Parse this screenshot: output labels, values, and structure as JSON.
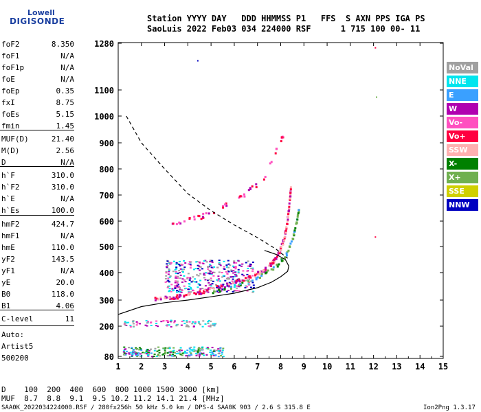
{
  "logo": {
    "line1": "Lowell",
    "line2": "DIGISONDE"
  },
  "header": {
    "row1": "Station YYYY DAY   DDD HHMMSS P1   FFS  S AXN PPS IGA PS",
    "row2": "SaoLuis 2022 Feb03 034 224000 RSF      1 715 100 00- 11"
  },
  "params": [
    {
      "label": "foF2",
      "value": "8.350"
    },
    {
      "label": "foF1",
      "value": "N/A"
    },
    {
      "label": "foF1p",
      "value": "N/A"
    },
    {
      "label": "foE",
      "value": "N/A"
    },
    {
      "label": "foEp",
      "value": "0.35"
    },
    {
      "label": "fxI",
      "value": "8.75"
    },
    {
      "label": "foEs",
      "value": "5.15"
    },
    {
      "label": "fmin",
      "value": "1.45"
    },
    {
      "label": "MUF(D)",
      "value": "21.40"
    },
    {
      "label": "M(D)",
      "value": "2.56"
    },
    {
      "label": "D",
      "value": "N/A"
    },
    {
      "label": "h`F",
      "value": "310.0"
    },
    {
      "label": "h`F2",
      "value": "310.0"
    },
    {
      "label": "h`E",
      "value": "N/A"
    },
    {
      "label": "h`Es",
      "value": "100.0"
    },
    {
      "label": "hmF2",
      "value": "424.7"
    },
    {
      "label": "hmF1",
      "value": "N/A"
    },
    {
      "label": "hmE",
      "value": "110.0"
    },
    {
      "label": "yF2",
      "value": "143.5"
    },
    {
      "label": "yF1",
      "value": "N/A"
    },
    {
      "label": "yE",
      "value": "20.0"
    },
    {
      "label": "B0",
      "value": "118.0"
    },
    {
      "label": "B1",
      "value": "4.06"
    },
    {
      "label": "C-level",
      "value": "11"
    }
  ],
  "auto": {
    "line1": "Auto:",
    "line2": "Artist5",
    "line3": "500200"
  },
  "legend": [
    {
      "label": "NoVal",
      "color": "#a0a0a0"
    },
    {
      "label": "NNE",
      "color": "#00e5ee"
    },
    {
      "label": "E",
      "color": "#3aa0ff"
    },
    {
      "label": "W",
      "color": "#b000b0"
    },
    {
      "label": "Vo-",
      "color": "#ff50c0"
    },
    {
      "label": "Vo+",
      "color": "#ff0040"
    },
    {
      "label": "SSW",
      "color": "#ffb0b0"
    },
    {
      "label": "X-",
      "color": "#008000"
    },
    {
      "label": "X+",
      "color": "#70b050"
    },
    {
      "label": "SSE",
      "color": "#d0d000"
    },
    {
      "label": "NNW",
      "color": "#0000c0"
    }
  ],
  "muf_table": {
    "row1": "D    100  200  400  600  800 1000 1500 3000 [km]",
    "row2": "MUF  8.7  8.8  9.1  9.5 10.2 11.2 14.1 21.4 [MHz]"
  },
  "footer": {
    "left": "SAA0K_2022034224000.RSF / 280fx256h 50 kHz 5.0 km / DPS-4 SAA0K 903 / 2.6 S 315.8 E",
    "right": "Ion2Png 1.3.17"
  },
  "chart_data": {
    "type": "scatter",
    "xlabel": "",
    "ylabel": "",
    "xlim": [
      1,
      15
    ],
    "ylim": [
      80,
      1280
    ],
    "xticks": [
      1,
      2,
      3,
      4,
      5,
      6,
      7,
      8,
      9,
      10,
      11,
      12,
      13,
      14,
      15
    ],
    "yticks": [
      80,
      200,
      300,
      400,
      500,
      600,
      700,
      800,
      900,
      1000,
      1100,
      1280
    ],
    "o_trace": [
      [
        2.5,
        305
      ],
      [
        3.5,
        315
      ],
      [
        4.5,
        330
      ],
      [
        5.5,
        355
      ],
      [
        6.5,
        380
      ],
      [
        7.2,
        410
      ],
      [
        7.6,
        440
      ],
      [
        7.9,
        480
      ],
      [
        8.1,
        530
      ],
      [
        8.25,
        600
      ],
      [
        8.35,
        680
      ],
      [
        8.4,
        730
      ]
    ],
    "x_trace": [
      [
        5.0,
        330
      ],
      [
        6.0,
        355
      ],
      [
        7.0,
        385
      ],
      [
        7.8,
        430
      ],
      [
        8.2,
        470
      ],
      [
        8.5,
        540
      ],
      [
        8.65,
        600
      ],
      [
        8.75,
        650
      ]
    ],
    "profile_curve": [
      [
        1.0,
        245
      ],
      [
        2.0,
        275
      ],
      [
        3.0,
        290
      ],
      [
        4.0,
        300
      ],
      [
        5.0,
        312
      ],
      [
        6.0,
        325
      ],
      [
        7.0,
        345
      ],
      [
        7.6,
        365
      ],
      [
        8.0,
        385
      ],
      [
        8.3,
        405
      ],
      [
        8.35,
        425
      ],
      [
        8.2,
        450
      ],
      [
        7.8,
        470
      ],
      [
        7.3,
        485
      ]
    ],
    "muf_dashed": [
      [
        1.35,
        1000
      ],
      [
        2.0,
        900
      ],
      [
        3.0,
        800
      ],
      [
        4.0,
        705
      ],
      [
        5.0,
        640
      ],
      [
        6.0,
        585
      ],
      [
        7.0,
        535
      ],
      [
        7.8,
        490
      ],
      [
        8.3,
        455
      ]
    ]
  }
}
